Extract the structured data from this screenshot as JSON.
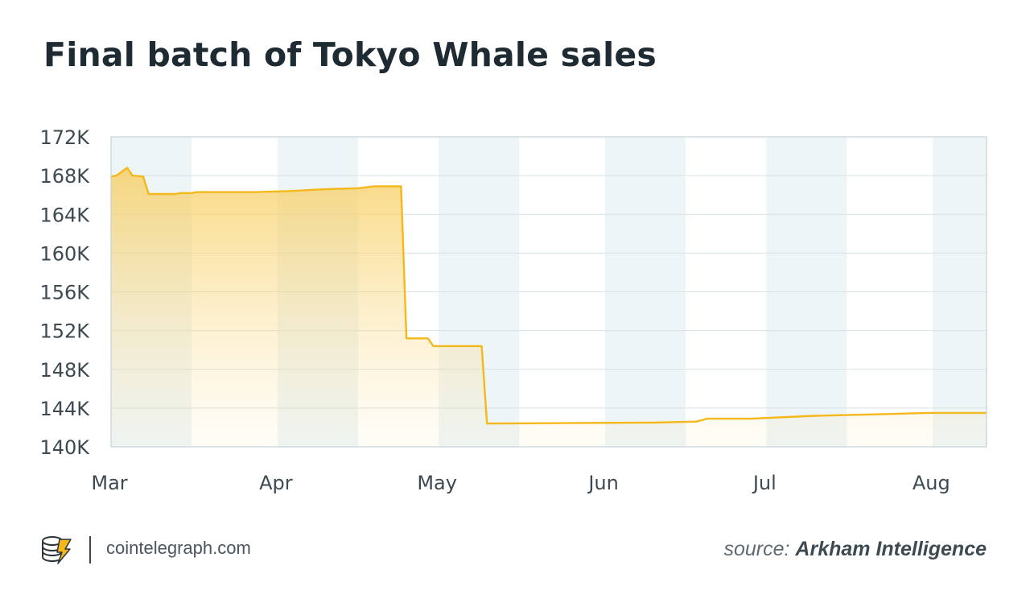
{
  "title": "Final batch of Tokyo Whale sales",
  "footer": {
    "domain": "cointelegraph.com",
    "source_prefix": "source:",
    "source_name": "Arkham Intelligence",
    "logo_icon": "cointelegraph-logo-icon"
  },
  "colors": {
    "line": "#F5B81C",
    "fill_top": "#F8CB56",
    "band": "#EEF5F7",
    "grid": "#D7E2E6",
    "border": "#C3D3D9"
  },
  "chart_data": {
    "type": "area",
    "title": "Final batch of Tokyo Whale sales",
    "xlabel": "",
    "ylabel": "",
    "ylim": [
      140000,
      172000
    ],
    "yticks": [
      {
        "value": 140000,
        "label": "140K"
      },
      {
        "value": 144000,
        "label": "144K"
      },
      {
        "value": 148000,
        "label": "148K"
      },
      {
        "value": 152000,
        "label": "152K"
      },
      {
        "value": 156000,
        "label": "156K"
      },
      {
        "value": 160000,
        "label": "160K"
      },
      {
        "value": 164000,
        "label": "164K"
      },
      {
        "value": 168000,
        "label": "168K"
      },
      {
        "value": 172000,
        "label": "172K"
      }
    ],
    "xlim": [
      "2024-03-01",
      "2024-08-11"
    ],
    "xticks": [
      {
        "date": "2024-03-01",
        "label": "Mar"
      },
      {
        "date": "2024-04-01",
        "label": "Apr"
      },
      {
        "date": "2024-05-01",
        "label": "May"
      },
      {
        "date": "2024-06-01",
        "label": "Jun"
      },
      {
        "date": "2024-07-01",
        "label": "Jul"
      },
      {
        "date": "2024-08-01",
        "label": "Aug"
      }
    ],
    "shaded_bands": [
      [
        "2024-03-01",
        "2024-03-16"
      ],
      [
        "2024-04-01",
        "2024-04-16"
      ],
      [
        "2024-05-01",
        "2024-05-16"
      ],
      [
        "2024-06-01",
        "2024-06-16"
      ],
      [
        "2024-07-01",
        "2024-07-16"
      ],
      [
        "2024-08-01",
        "2024-08-11"
      ]
    ],
    "grid": true,
    "series": [
      {
        "points": [
          {
            "x": "2024-03-01",
            "y": 167900
          },
          {
            "x": "2024-03-02",
            "y": 168000
          },
          {
            "x": "2024-03-04",
            "y": 168800
          },
          {
            "x": "2024-03-05",
            "y": 168000
          },
          {
            "x": "2024-03-07",
            "y": 167900
          },
          {
            "x": "2024-03-08",
            "y": 166100
          },
          {
            "x": "2024-03-13",
            "y": 166100
          },
          {
            "x": "2024-03-14",
            "y": 166200
          },
          {
            "x": "2024-03-16",
            "y": 166200
          },
          {
            "x": "2024-03-17",
            "y": 166300
          },
          {
            "x": "2024-03-28",
            "y": 166300
          },
          {
            "x": "2024-04-03",
            "y": 166400
          },
          {
            "x": "2024-04-10",
            "y": 166600
          },
          {
            "x": "2024-04-16",
            "y": 166700
          },
          {
            "x": "2024-04-19",
            "y": 166900
          },
          {
            "x": "2024-04-24",
            "y": 166900
          },
          {
            "x": "2024-04-25",
            "y": 151200
          },
          {
            "x": "2024-04-29",
            "y": 151200
          },
          {
            "x": "2024-04-30",
            "y": 150400
          },
          {
            "x": "2024-05-09",
            "y": 150400
          },
          {
            "x": "2024-05-10",
            "y": 142400
          },
          {
            "x": "2024-06-10",
            "y": 142500
          },
          {
            "x": "2024-06-18",
            "y": 142600
          },
          {
            "x": "2024-06-20",
            "y": 142900
          },
          {
            "x": "2024-06-28",
            "y": 142900
          },
          {
            "x": "2024-07-10",
            "y": 143200
          },
          {
            "x": "2024-07-25",
            "y": 143400
          },
          {
            "x": "2024-07-31",
            "y": 143500
          },
          {
            "x": "2024-08-11",
            "y": 143500
          }
        ]
      }
    ]
  }
}
